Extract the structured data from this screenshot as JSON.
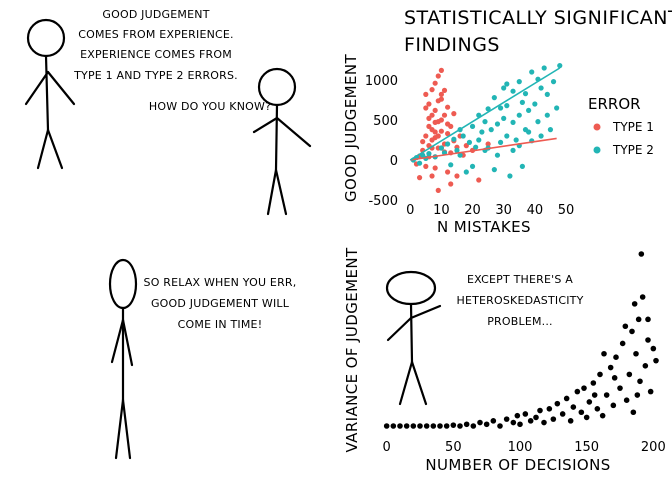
{
  "panel1": {
    "speaker_lines": [
      "GOOD JUDGEMENT",
      "COMES FROM EXPERIENCE.",
      "EXPERIENCE COMES FROM",
      "TYPE 1 AND TYPE 2 ERRORS."
    ],
    "reply": "HOW DO YOU KNOW?"
  },
  "panel3": {
    "lines": [
      "SO RELAX WHEN YOU ERR,",
      "GOOD JUDGEMENT WILL",
      "COME IN TIME!"
    ]
  },
  "panel4": {
    "lines": [
      "EXCEPT THERE'S A",
      "HETEROSKEDASTICITY",
      "PROBLEM..."
    ]
  },
  "chart_data": [
    {
      "type": "scatter",
      "title": "STATISTICALLY SIGNIFICANT FINDINGS",
      "xlabel": "N MISTAKES",
      "ylabel": "GOOD JUDGEMENT",
      "xlim": [
        -2,
        50
      ],
      "ylim": [
        -550,
        1250
      ],
      "xticks": [
        "0",
        "10",
        "20",
        "30",
        "40",
        "50"
      ],
      "yticks": [
        "1000",
        "500",
        "0",
        "-500"
      ],
      "legend_title": "ERROR",
      "legend_placement": "right",
      "series": [
        {
          "name": "TYPE 1",
          "color": "#ee5b52",
          "fit": [
            [
              0,
              0
            ],
            [
              47,
              270
            ]
          ],
          "points": [
            [
              2,
              -50
            ],
            [
              3,
              50
            ],
            [
              4,
              120
            ],
            [
              5,
              -80
            ],
            [
              5,
              300
            ],
            [
              6,
              420
            ],
            [
              6,
              700
            ],
            [
              6,
              180
            ],
            [
              7,
              -200
            ],
            [
              7,
              560
            ],
            [
              7,
              880
            ],
            [
              7,
              250
            ],
            [
              8,
              350
            ],
            [
              8,
              -100
            ],
            [
              8,
              960
            ],
            [
              8,
              40
            ],
            [
              8,
              620
            ],
            [
              9,
              1050
            ],
            [
              9,
              300
            ],
            [
              9,
              480
            ],
            [
              9,
              -380
            ],
            [
              10,
              150
            ],
            [
              10,
              760
            ],
            [
              10,
              500
            ],
            [
              10,
              820
            ],
            [
              11,
              200
            ],
            [
              11,
              560
            ],
            [
              11,
              100
            ],
            [
              12,
              -150
            ],
            [
              12,
              330
            ],
            [
              12,
              660
            ],
            [
              13,
              90
            ],
            [
              13,
              420
            ],
            [
              14,
              240
            ],
            [
              15,
              -200
            ],
            [
              15,
              160
            ],
            [
              16,
              300
            ],
            [
              17,
              60
            ],
            [
              18,
              180
            ],
            [
              20,
              120
            ],
            [
              22,
              -250
            ],
            [
              25,
              200
            ],
            [
              5,
              820
            ],
            [
              6,
              40
            ],
            [
              7,
              380
            ],
            [
              8,
              470
            ],
            [
              9,
              740
            ],
            [
              10,
              1120
            ],
            [
              4,
              230
            ],
            [
              3,
              -220
            ],
            [
              11,
              870
            ],
            [
              7,
              150
            ],
            [
              8,
              280
            ],
            [
              9,
              150
            ],
            [
              10,
              360
            ],
            [
              6,
              520
            ],
            [
              12,
              450
            ],
            [
              13,
              -300
            ],
            [
              14,
              580
            ],
            [
              5,
              650
            ]
          ]
        },
        {
          "name": "TYPE 2",
          "color": "#22b5b5",
          "fit": [
            [
              0,
              0
            ],
            [
              48,
              1150
            ]
          ],
          "points": [
            [
              1,
              0
            ],
            [
              2,
              30
            ],
            [
              3,
              -40
            ],
            [
              4,
              60
            ],
            [
              5,
              20
            ],
            [
              6,
              80
            ],
            [
              8,
              40
            ],
            [
              10,
              150
            ],
            [
              11,
              90
            ],
            [
              12,
              200
            ],
            [
              13,
              -60
            ],
            [
              14,
              260
            ],
            [
              15,
              120
            ],
            [
              16,
              60
            ],
            [
              17,
              300
            ],
            [
              18,
              -150
            ],
            [
              19,
              220
            ],
            [
              20,
              420
            ],
            [
              21,
              160
            ],
            [
              22,
              560
            ],
            [
              23,
              350
            ],
            [
              24,
              120
            ],
            [
              25,
              640
            ],
            [
              26,
              380
            ],
            [
              27,
              -120
            ],
            [
              27,
              780
            ],
            [
              28,
              450
            ],
            [
              29,
              220
            ],
            [
              30,
              900
            ],
            [
              30,
              520
            ],
            [
              31,
              300
            ],
            [
              31,
              680
            ],
            [
              32,
              -200
            ],
            [
              33,
              860
            ],
            [
              33,
              470
            ],
            [
              34,
              250
            ],
            [
              35,
              560
            ],
            [
              35,
              980
            ],
            [
              36,
              720
            ],
            [
              37,
              380
            ],
            [
              37,
              830
            ],
            [
              38,
              620
            ],
            [
              39,
              1100
            ],
            [
              39,
              240
            ],
            [
              40,
              700
            ],
            [
              41,
              480
            ],
            [
              42,
              900
            ],
            [
              43,
              1150
            ],
            [
              44,
              560
            ],
            [
              44,
              820
            ],
            [
              45,
              380
            ],
            [
              46,
              980
            ],
            [
              47,
              650
            ],
            [
              48,
              1180
            ],
            [
              25,
              150
            ],
            [
              28,
              60
            ],
            [
              33,
              120
            ],
            [
              38,
              350
            ],
            [
              42,
              300
            ],
            [
              20,
              -80
            ],
            [
              24,
              480
            ],
            [
              29,
              650
            ],
            [
              35,
              180
            ],
            [
              36,
              -80
            ],
            [
              41,
              1010
            ],
            [
              16,
              380
            ],
            [
              22,
              250
            ],
            [
              31,
              950
            ]
          ]
        }
      ]
    },
    {
      "type": "scatter",
      "title": "",
      "xlabel": "NUMBER OF DECISIONS",
      "ylabel": "VARIANCE OF JUDGEMENT",
      "xlim": [
        -5,
        205
      ],
      "ylim": [
        0,
        1
      ],
      "xticks": [
        "0",
        "50",
        "100",
        "150",
        "200"
      ],
      "series": [
        {
          "color": "#000000",
          "points": [
            [
              0,
              0
            ],
            [
              5,
              0
            ],
            [
              10,
              0
            ],
            [
              15,
              0
            ],
            [
              20,
              0
            ],
            [
              25,
              0
            ],
            [
              30,
              0
            ],
            [
              35,
              0
            ],
            [
              40,
              0
            ],
            [
              45,
              0
            ],
            [
              50,
              0.005
            ],
            [
              55,
              0
            ],
            [
              60,
              0.01
            ],
            [
              65,
              0
            ],
            [
              70,
              0.02
            ],
            [
              75,
              0.01
            ],
            [
              80,
              0.03
            ],
            [
              85,
              0
            ],
            [
              90,
              0.04
            ],
            [
              95,
              0.02
            ],
            [
              98,
              0.06
            ],
            [
              100,
              0.01
            ],
            [
              104,
              0.07
            ],
            [
              108,
              0.03
            ],
            [
              112,
              0.05
            ],
            [
              115,
              0.09
            ],
            [
              118,
              0.02
            ],
            [
              122,
              0.1
            ],
            [
              125,
              0.04
            ],
            [
              128,
              0.13
            ],
            [
              132,
              0.07
            ],
            [
              135,
              0.16
            ],
            [
              138,
              0.03
            ],
            [
              140,
              0.11
            ],
            [
              143,
              0.2
            ],
            [
              146,
              0.08
            ],
            [
              148,
              0.22
            ],
            [
              150,
              0.05
            ],
            [
              152,
              0.14
            ],
            [
              155,
              0.25
            ],
            [
              158,
              0.1
            ],
            [
              160,
              0.3
            ],
            [
              162,
              0.06
            ],
            [
              165,
              0.18
            ],
            [
              168,
              0.34
            ],
            [
              170,
              0.12
            ],
            [
              172,
              0.4
            ],
            [
              175,
              0.22
            ],
            [
              177,
              0.48
            ],
            [
              180,
              0.15
            ],
            [
              182,
              0.3
            ],
            [
              184,
              0.55
            ],
            [
              185,
              0.08
            ],
            [
              187,
              0.42
            ],
            [
              189,
              0.62
            ],
            [
              190,
              0.26
            ],
            [
              192,
              0.75
            ],
            [
              194,
              0.35
            ],
            [
              196,
              0.5
            ],
            [
              198,
              0.2
            ],
            [
              200,
              0.45
            ],
            [
              202,
              0.38
            ],
            [
              191,
              1.0
            ],
            [
              186,
              0.71
            ],
            [
              179,
              0.58
            ],
            [
              171,
              0.28
            ],
            [
              163,
              0.42
            ],
            [
              156,
              0.18
            ],
            [
              196,
              0.62
            ],
            [
              188,
              0.18
            ]
          ]
        }
      ]
    }
  ]
}
